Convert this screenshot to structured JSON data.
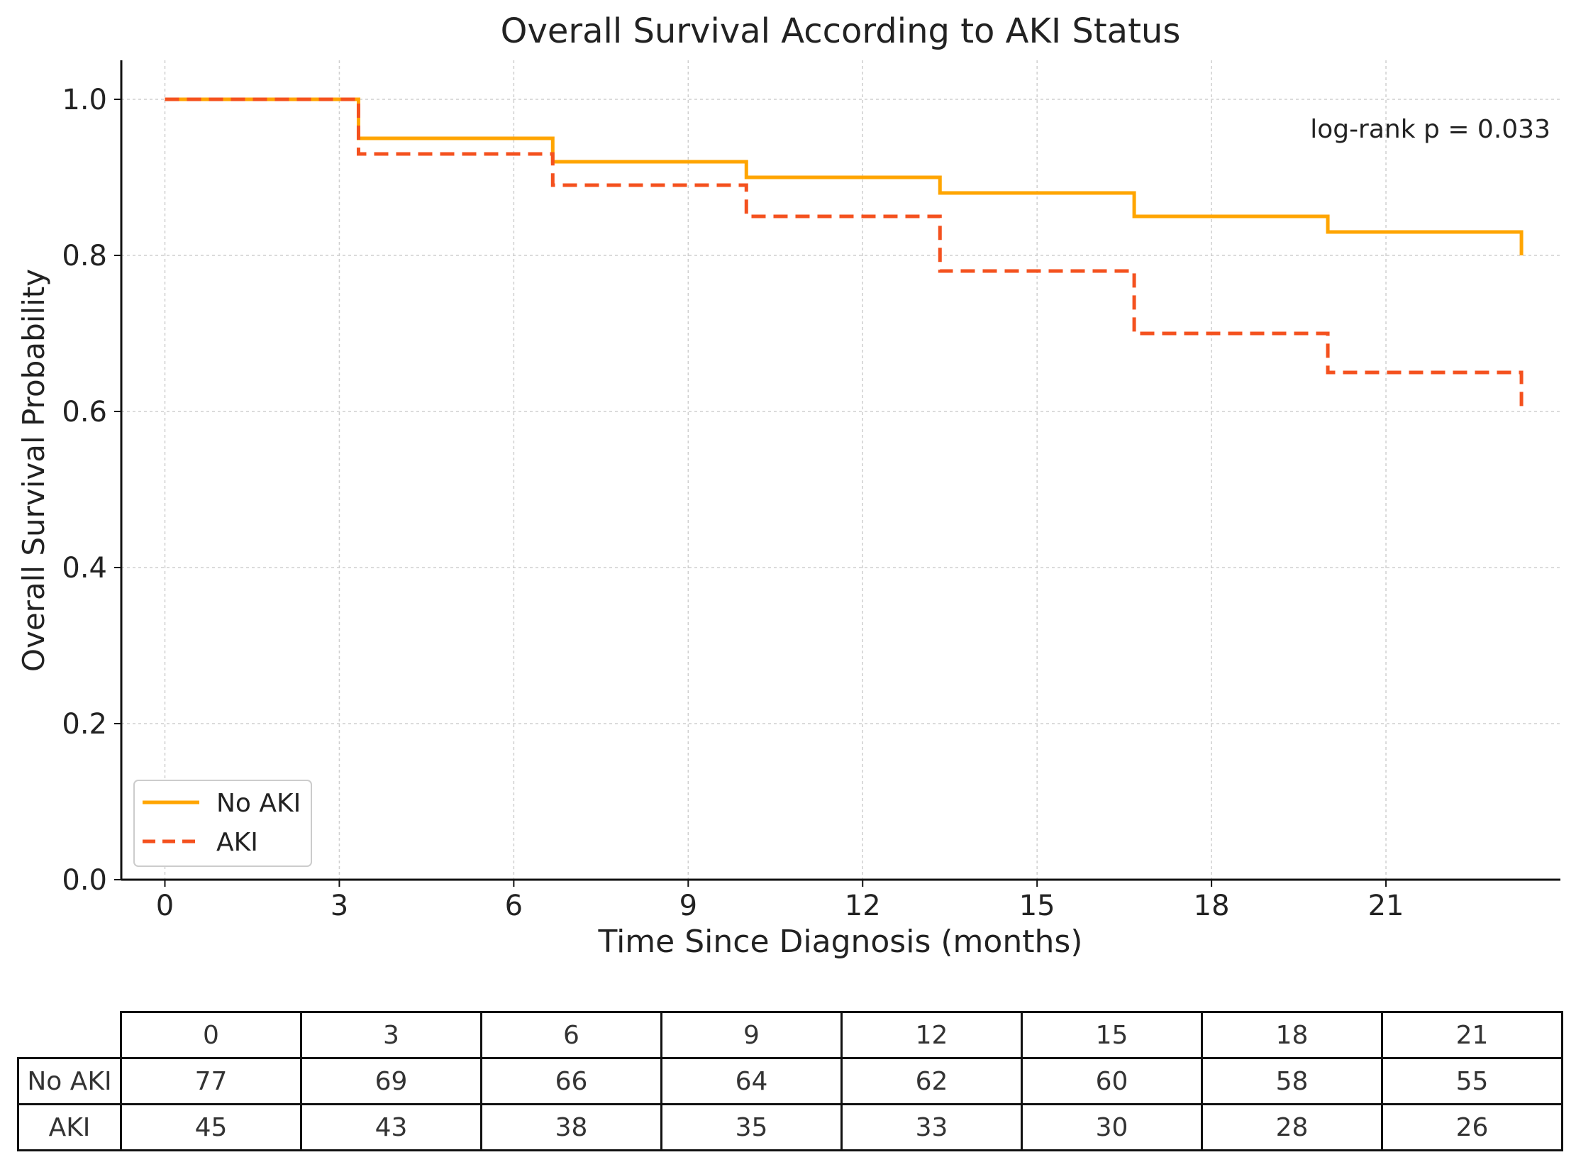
{
  "chart_data": {
    "type": "line",
    "subtype": "kaplan-meier-step",
    "title": "Overall Survival According to AKI Status",
    "xlabel": "Time Since Diagnosis (months)",
    "ylabel": "Overall Survival Probability",
    "xlim": [
      -0.75,
      24.0
    ],
    "ylim": [
      0.0,
      1.05
    ],
    "xticks": [
      0,
      3,
      6,
      9,
      12,
      15,
      18,
      21
    ],
    "yticks": [
      0.0,
      0.2,
      0.4,
      0.6,
      0.8,
      1.0
    ],
    "ytick_labels": [
      "0.0",
      "0.2",
      "0.4",
      "0.6",
      "0.8",
      "1.0"
    ],
    "grid": true,
    "annotation": "log-rank p = 0.033",
    "legend_position": "lower-left",
    "series": [
      {
        "name": "No AKI",
        "style": "solid",
        "color": "#ffa500",
        "x": [
          0,
          3.33,
          6.67,
          10.0,
          13.33,
          16.67,
          20.0,
          23.33
        ],
        "y": [
          1.0,
          0.95,
          0.92,
          0.9,
          0.88,
          0.85,
          0.83,
          0.8
        ]
      },
      {
        "name": "AKI",
        "style": "dashed",
        "color": "#f4511e",
        "x": [
          0,
          3.33,
          6.67,
          10.0,
          13.33,
          16.67,
          20.0,
          23.33
        ],
        "y": [
          1.0,
          0.93,
          0.89,
          0.85,
          0.78,
          0.7,
          0.65,
          0.6
        ]
      }
    ]
  },
  "risk_table": {
    "times": [
      "0",
      "3",
      "6",
      "9",
      "12",
      "15",
      "18",
      "21"
    ],
    "rows": [
      {
        "label": "No AKI",
        "values": [
          "77",
          "69",
          "66",
          "64",
          "62",
          "60",
          "58",
          "55"
        ]
      },
      {
        "label": "AKI",
        "values": [
          "45",
          "43",
          "38",
          "35",
          "33",
          "30",
          "28",
          "26"
        ]
      }
    ]
  }
}
